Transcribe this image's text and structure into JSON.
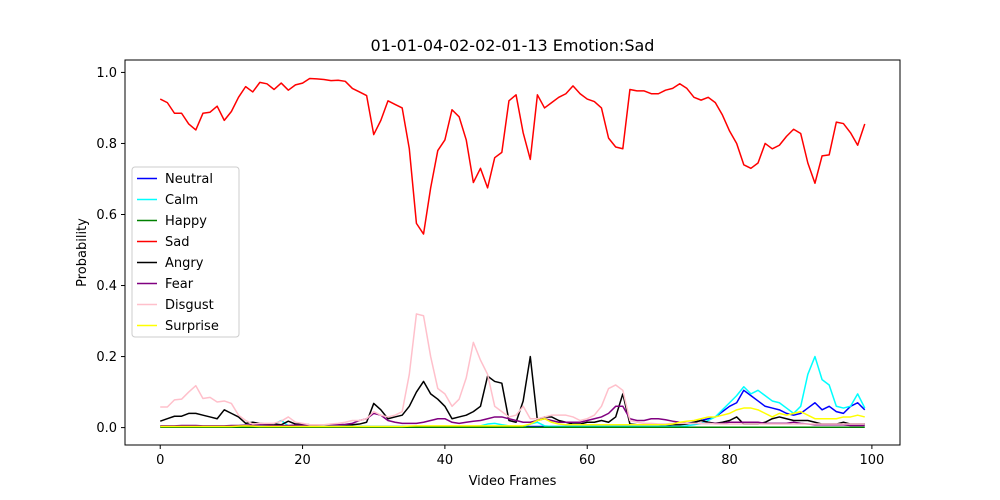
{
  "chart_data": {
    "type": "line",
    "title": "01-01-04-02-02-01-13 Emotion:Sad",
    "xlabel": "Video Frames",
    "ylabel": "Probability",
    "xlim": [
      -4.95,
      103.95
    ],
    "ylim": [
      -0.049,
      1.035
    ],
    "xticks": [
      0,
      20,
      40,
      60,
      80,
      100
    ],
    "yticks": [
      0.0,
      0.2,
      0.4,
      0.6,
      0.8,
      1.0
    ],
    "xtick_labels": [
      "0",
      "20",
      "40",
      "60",
      "80",
      "100"
    ],
    "ytick_labels": [
      "0.0",
      "0.2",
      "0.4",
      "0.6",
      "0.8",
      "1.0"
    ],
    "legend_position": "center-left",
    "grid": false,
    "series": [
      {
        "name": "Neutral",
        "color": "#0000ff",
        "values": [
          0.003,
          0.003,
          0.003,
          0.003,
          0.003,
          0.003,
          0.003,
          0.003,
          0.003,
          0.003,
          0.003,
          0.003,
          0.003,
          0.003,
          0.003,
          0.003,
          0.003,
          0.003,
          0.003,
          0.003,
          0.003,
          0.003,
          0.003,
          0.003,
          0.003,
          0.003,
          0.003,
          0.003,
          0.003,
          0.003,
          0.003,
          0.003,
          0.003,
          0.003,
          0.003,
          0.003,
          0.003,
          0.003,
          0.003,
          0.003,
          0.003,
          0.003,
          0.003,
          0.003,
          0.003,
          0.003,
          0.003,
          0.003,
          0.003,
          0.003,
          0.003,
          0.003,
          0.003,
          0.003,
          0.003,
          0.003,
          0.003,
          0.003,
          0.003,
          0.003,
          0.003,
          0.003,
          0.003,
          0.003,
          0.003,
          0.003,
          0.003,
          0.003,
          0.003,
          0.003,
          0.003,
          0.005,
          0.008,
          0.01,
          0.012,
          0.015,
          0.02,
          0.025,
          0.03,
          0.045,
          0.06,
          0.07,
          0.105,
          0.09,
          0.075,
          0.06,
          0.055,
          0.05,
          0.04,
          0.035,
          0.04,
          0.055,
          0.07,
          0.05,
          0.06,
          0.045,
          0.04,
          0.06,
          0.07,
          0.05
        ]
      },
      {
        "name": "Calm",
        "color": "#00ffff",
        "values": [
          0.003,
          0.003,
          0.003,
          0.003,
          0.003,
          0.003,
          0.003,
          0.003,
          0.003,
          0.003,
          0.003,
          0.003,
          0.003,
          0.003,
          0.003,
          0.005,
          0.01,
          0.02,
          0.005,
          0.003,
          0.003,
          0.003,
          0.003,
          0.003,
          0.003,
          0.003,
          0.003,
          0.003,
          0.003,
          0.003,
          0.003,
          0.003,
          0.003,
          0.003,
          0.003,
          0.003,
          0.003,
          0.003,
          0.003,
          0.003,
          0.003,
          0.003,
          0.003,
          0.003,
          0.003,
          0.005,
          0.01,
          0.012,
          0.008,
          0.005,
          0.003,
          0.003,
          0.01,
          0.015,
          0.005,
          0.003,
          0.003,
          0.003,
          0.003,
          0.003,
          0.003,
          0.003,
          0.003,
          0.003,
          0.003,
          0.003,
          0.003,
          0.003,
          0.003,
          0.003,
          0.003,
          0.003,
          0.003,
          0.003,
          0.005,
          0.008,
          0.012,
          0.02,
          0.03,
          0.05,
          0.07,
          0.09,
          0.115,
          0.095,
          0.105,
          0.09,
          0.075,
          0.07,
          0.055,
          0.04,
          0.06,
          0.15,
          0.2,
          0.135,
          0.12,
          0.06,
          0.055,
          0.06,
          0.095,
          0.055
        ]
      },
      {
        "name": "Happy",
        "color": "#008000",
        "values": [
          0.001,
          0.001,
          0.001,
          0.001,
          0.001,
          0.001,
          0.001,
          0.001,
          0.001,
          0.001,
          0.001,
          0.001,
          0.001,
          0.001,
          0.001,
          0.001,
          0.001,
          0.001,
          0.001,
          0.001,
          0.001,
          0.001,
          0.001,
          0.001,
          0.001,
          0.001,
          0.001,
          0.001,
          0.001,
          0.001,
          0.001,
          0.001,
          0.001,
          0.001,
          0.001,
          0.001,
          0.001,
          0.001,
          0.001,
          0.001,
          0.001,
          0.001,
          0.001,
          0.001,
          0.001,
          0.001,
          0.001,
          0.001,
          0.001,
          0.001,
          0.001,
          0.001,
          0.001,
          0.001,
          0.001,
          0.001,
          0.001,
          0.001,
          0.001,
          0.001,
          0.001,
          0.001,
          0.001,
          0.001,
          0.001,
          0.001,
          0.001,
          0.001,
          0.001,
          0.001,
          0.001,
          0.001,
          0.001,
          0.001,
          0.001,
          0.001,
          0.001,
          0.001,
          0.001,
          0.001,
          0.001,
          0.001,
          0.001,
          0.001,
          0.001,
          0.001,
          0.001,
          0.001,
          0.001,
          0.001,
          0.001,
          0.001,
          0.001,
          0.001,
          0.001,
          0.001,
          0.001,
          0.001,
          0.001,
          0.001
        ]
      },
      {
        "name": "Sad",
        "color": "#ff0000",
        "values": [
          0.925,
          0.915,
          0.885,
          0.885,
          0.855,
          0.838,
          0.885,
          0.888,
          0.905,
          0.865,
          0.89,
          0.93,
          0.96,
          0.945,
          0.972,
          0.968,
          0.952,
          0.97,
          0.95,
          0.965,
          0.97,
          0.983,
          0.982,
          0.98,
          0.977,
          0.978,
          0.975,
          0.955,
          0.945,
          0.935,
          0.825,
          0.865,
          0.92,
          0.91,
          0.9,
          0.785,
          0.575,
          0.545,
          0.675,
          0.78,
          0.81,
          0.895,
          0.875,
          0.81,
          0.69,
          0.73,
          0.675,
          0.76,
          0.775,
          0.92,
          0.937,
          0.83,
          0.755,
          0.937,
          0.9,
          0.915,
          0.93,
          0.94,
          0.962,
          0.94,
          0.925,
          0.918,
          0.9,
          0.815,
          0.79,
          0.785,
          0.952,
          0.948,
          0.948,
          0.94,
          0.94,
          0.95,
          0.955,
          0.968,
          0.955,
          0.93,
          0.922,
          0.93,
          0.915,
          0.88,
          0.835,
          0.8,
          0.74,
          0.73,
          0.745,
          0.8,
          0.785,
          0.795,
          0.82,
          0.84,
          0.828,
          0.745,
          0.688,
          0.765,
          0.768,
          0.86,
          0.856,
          0.83,
          0.795,
          0.855
        ]
      },
      {
        "name": "Angry",
        "color": "#000000",
        "values": [
          0.018,
          0.025,
          0.032,
          0.032,
          0.04,
          0.04,
          0.035,
          0.03,
          0.025,
          0.05,
          0.04,
          0.03,
          0.012,
          0.015,
          0.012,
          0.01,
          0.01,
          0.008,
          0.018,
          0.01,
          0.01,
          0.008,
          0.008,
          0.008,
          0.008,
          0.008,
          0.008,
          0.008,
          0.01,
          0.015,
          0.068,
          0.05,
          0.025,
          0.03,
          0.035,
          0.06,
          0.1,
          0.13,
          0.095,
          0.08,
          0.06,
          0.025,
          0.03,
          0.035,
          0.045,
          0.06,
          0.145,
          0.13,
          0.125,
          0.02,
          0.015,
          0.075,
          0.2,
          0.02,
          0.03,
          0.03,
          0.02,
          0.015,
          0.01,
          0.01,
          0.015,
          0.015,
          0.02,
          0.015,
          0.03,
          0.095,
          0.01,
          0.008,
          0.008,
          0.008,
          0.008,
          0.008,
          0.008,
          0.008,
          0.01,
          0.015,
          0.02,
          0.015,
          0.012,
          0.015,
          0.02,
          0.03,
          0.01,
          0.01,
          0.01,
          0.015,
          0.025,
          0.03,
          0.025,
          0.02,
          0.02,
          0.02,
          0.015,
          0.01,
          0.01,
          0.01,
          0.015,
          0.01,
          0.01,
          0.01
        ]
      },
      {
        "name": "Fear",
        "color": "#800080",
        "values": [
          0.005,
          0.005,
          0.005,
          0.006,
          0.006,
          0.006,
          0.005,
          0.005,
          0.005,
          0.005,
          0.006,
          0.006,
          0.007,
          0.008,
          0.008,
          0.007,
          0.006,
          0.006,
          0.006,
          0.007,
          0.007,
          0.007,
          0.007,
          0.008,
          0.008,
          0.008,
          0.009,
          0.012,
          0.02,
          0.025,
          0.04,
          0.035,
          0.02,
          0.015,
          0.012,
          0.012,
          0.012,
          0.015,
          0.02,
          0.025,
          0.025,
          0.015,
          0.012,
          0.015,
          0.018,
          0.02,
          0.025,
          0.03,
          0.03,
          0.025,
          0.02,
          0.015,
          0.015,
          0.02,
          0.025,
          0.02,
          0.015,
          0.015,
          0.015,
          0.015,
          0.02,
          0.025,
          0.03,
          0.04,
          0.06,
          0.06,
          0.025,
          0.02,
          0.02,
          0.025,
          0.025,
          0.022,
          0.018,
          0.015,
          0.012,
          0.012,
          0.012,
          0.012,
          0.012,
          0.012,
          0.015,
          0.015,
          0.015,
          0.015,
          0.015,
          0.012,
          0.012,
          0.012,
          0.012,
          0.015,
          0.012,
          0.01,
          0.008,
          0.008,
          0.008,
          0.008,
          0.008,
          0.006,
          0.006,
          0.006
        ]
      },
      {
        "name": "Disgust",
        "color": "#ffc0cb",
        "values": [
          0.058,
          0.058,
          0.078,
          0.08,
          0.1,
          0.118,
          0.082,
          0.085,
          0.072,
          0.075,
          0.068,
          0.035,
          0.02,
          0.01,
          0.012,
          0.012,
          0.012,
          0.018,
          0.03,
          0.015,
          0.012,
          0.008,
          0.008,
          0.008,
          0.01,
          0.012,
          0.015,
          0.02,
          0.02,
          0.025,
          0.045,
          0.035,
          0.03,
          0.035,
          0.045,
          0.15,
          0.32,
          0.315,
          0.2,
          0.11,
          0.095,
          0.06,
          0.08,
          0.14,
          0.24,
          0.19,
          0.15,
          0.06,
          0.045,
          0.03,
          0.035,
          0.06,
          0.025,
          0.025,
          0.03,
          0.035,
          0.035,
          0.035,
          0.03,
          0.02,
          0.025,
          0.035,
          0.06,
          0.11,
          0.12,
          0.105,
          0.02,
          0.015,
          0.012,
          0.012,
          0.01,
          0.01,
          0.012,
          0.012,
          0.012,
          0.012,
          0.012,
          0.012,
          0.01,
          0.01,
          0.01,
          0.01,
          0.01,
          0.01,
          0.01,
          0.01,
          0.01,
          0.01,
          0.01,
          0.01,
          0.01,
          0.01,
          0.01,
          0.01,
          0.01,
          0.01,
          0.01,
          0.01,
          0.01,
          0.01
        ]
      },
      {
        "name": "Surprise",
        "color": "#ffff00",
        "values": [
          0.003,
          0.003,
          0.003,
          0.003,
          0.003,
          0.003,
          0.003,
          0.003,
          0.003,
          0.003,
          0.003,
          0.004,
          0.005,
          0.004,
          0.003,
          0.003,
          0.003,
          0.003,
          0.003,
          0.003,
          0.003,
          0.003,
          0.003,
          0.003,
          0.003,
          0.003,
          0.003,
          0.003,
          0.003,
          0.003,
          0.003,
          0.003,
          0.003,
          0.003,
          0.003,
          0.004,
          0.005,
          0.005,
          0.005,
          0.005,
          0.005,
          0.005,
          0.005,
          0.005,
          0.005,
          0.005,
          0.005,
          0.005,
          0.005,
          0.005,
          0.005,
          0.005,
          0.01,
          0.02,
          0.025,
          0.015,
          0.01,
          0.008,
          0.008,
          0.008,
          0.008,
          0.008,
          0.008,
          0.008,
          0.008,
          0.008,
          0.008,
          0.008,
          0.008,
          0.008,
          0.008,
          0.008,
          0.01,
          0.015,
          0.018,
          0.02,
          0.025,
          0.03,
          0.03,
          0.035,
          0.04,
          0.05,
          0.055,
          0.055,
          0.05,
          0.04,
          0.03,
          0.04,
          0.035,
          0.04,
          0.045,
          0.035,
          0.025,
          0.025,
          0.025,
          0.025,
          0.03,
          0.03,
          0.035,
          0.03
        ]
      }
    ]
  }
}
